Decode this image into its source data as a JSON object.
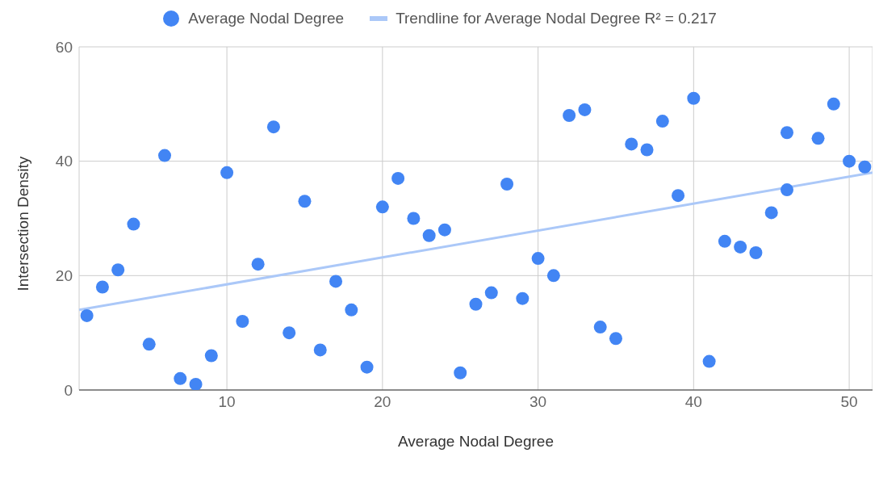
{
  "chart_data": {
    "type": "scatter",
    "xlabel": "Average Nodal Degree",
    "ylabel": "Intersection Density",
    "x": [
      1,
      2,
      3,
      4,
      5,
      6,
      7,
      8,
      9,
      10,
      11,
      12,
      13,
      14,
      15,
      16,
      17,
      18,
      19,
      20,
      21,
      22,
      23,
      24,
      25,
      26,
      27,
      28,
      29,
      30,
      31,
      32,
      33,
      34,
      35,
      36,
      37,
      38,
      39,
      40,
      41,
      42,
      43,
      44,
      45,
      46,
      46,
      48,
      49,
      50,
      51
    ],
    "series": [
      {
        "name": "Average Nodal Degree",
        "color": "#4285f4",
        "marker": "circle",
        "values": [
          13,
          18,
          21,
          29,
          8,
          41,
          2,
          1,
          6,
          38,
          12,
          22,
          46,
          10,
          33,
          7,
          19,
          14,
          4,
          32,
          37,
          30,
          27,
          28,
          3,
          15,
          17,
          36,
          16,
          23,
          20,
          48,
          49,
          11,
          9,
          43,
          42,
          47,
          34,
          51,
          5,
          26,
          25,
          24,
          31,
          45,
          35,
          44,
          50,
          40,
          39
        ]
      },
      {
        "name": "Trendline for Average Nodal Degree R² = 0.217",
        "type": "line",
        "color": "#abc8f8",
        "x": [
          0.5,
          51.5
        ],
        "values": [
          14,
          38
        ]
      }
    ],
    "xlim": [
      0.5,
      51.5
    ],
    "xticks": [
      10,
      20,
      30,
      40,
      50
    ],
    "ylim": [
      0,
      60
    ],
    "yticks": [
      0,
      20,
      40,
      60
    ],
    "grid": true,
    "legend": "top"
  }
}
